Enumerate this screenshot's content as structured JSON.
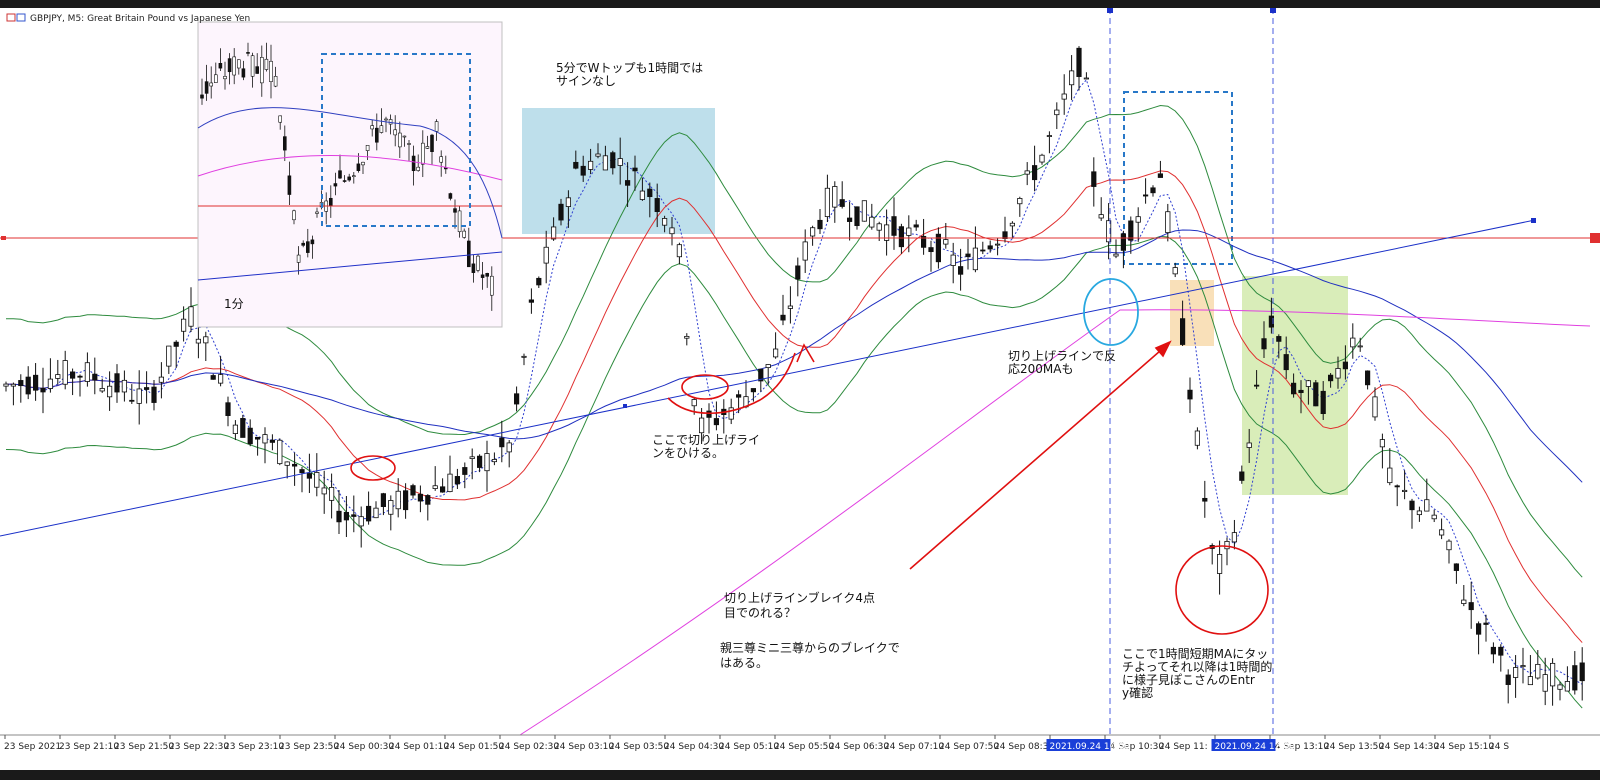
{
  "window": {
    "symbol_title": "GBPJPY, M5:  Great Britain Pound vs Japanese Yen"
  },
  "colors": {
    "bollinger": "#2e8b3e",
    "ma_short": "#e03030",
    "ma_mid": "#2030c0",
    "ma_long": "#e040e0",
    "ema_dotted": "#3040d0",
    "trendline": "#1a30c8",
    "annotation": "#e01010",
    "box_blue": "#a8d4e4",
    "box_orange": "#f8d8a8",
    "box_green": "#cfe8a8",
    "dashed_box": "#2878c8"
  },
  "chart_data": {
    "type": "candlestick",
    "price_range": [
      0,
      100
    ],
    "x_axis": {
      "labels": [
        "23 Sep 2021",
        "23 Sep 21:10",
        "23 Sep 21:50",
        "23 Sep 22:30",
        "23 Sep 23:10",
        "23 Sep 23:50",
        "24 Sep 00:30",
        "24 Sep 01:10",
        "24 Sep 01:50",
        "24 Sep 02:30",
        "24 Sep 03:10",
        "24 Sep 03:50",
        "24 Sep 04:30",
        "24 Sep 05:10",
        "24 Sep 05:50",
        "24 Sep 06:30",
        "24 Sep 07:10",
        "24 Sep 07:50",
        "24 Sep 08:30",
        "24 Sep 09:",
        "24 Sep 10:30",
        "24 Sep 11:",
        "24 Sep 12:20",
        "24 Sep 13:10",
        "24 Sep 13:50",
        "24 Sep 14:30",
        "24 Sep 15:10",
        "24 S"
      ],
      "highlighted": [
        {
          "label": "2021.09.24 10:00",
          "index": 19.5
        },
        {
          "label": "2021.09.24 12:00",
          "index": 22.5
        }
      ]
    },
    "price_path": [
      [
        0,
        48
      ],
      [
        1.4,
        50
      ],
      [
        2.6,
        46
      ],
      [
        3.4,
        58
      ],
      [
        4.2,
        43
      ],
      [
        5.2,
        38
      ],
      [
        6.2,
        30
      ],
      [
        7.2,
        32
      ],
      [
        8.4,
        36
      ],
      [
        9.2,
        40
      ],
      [
        9.6,
        60
      ],
      [
        10.4,
        78
      ],
      [
        11.0,
        80
      ],
      [
        11.8,
        74
      ],
      [
        12.2,
        70
      ],
      [
        12.6,
        42
      ],
      [
        13.4,
        46
      ],
      [
        14.0,
        52
      ],
      [
        14.6,
        68
      ],
      [
        15.0,
        74
      ],
      [
        16.0,
        70
      ],
      [
        17.0,
        67
      ],
      [
        17.4,
        64
      ],
      [
        18.2,
        70
      ],
      [
        19.0,
        82
      ],
      [
        19.6,
        94
      ],
      [
        19.8,
        76
      ],
      [
        20.2,
        66
      ],
      [
        20.6,
        72
      ],
      [
        21.0,
        78
      ],
      [
        21.4,
        56
      ],
      [
        22.0,
        22
      ],
      [
        22.3,
        26
      ],
      [
        22.6,
        40
      ],
      [
        23.0,
        58
      ],
      [
        23.4,
        48
      ],
      [
        24.0,
        46
      ],
      [
        24.6,
        56
      ],
      [
        25.2,
        34
      ],
      [
        26.0,
        30
      ],
      [
        26.6,
        18
      ],
      [
        27.4,
        8
      ]
    ],
    "overlays": [
      {
        "name": "trendline",
        "from": [
          0,
          14
        ],
        "to": [
          28.2,
          72
        ]
      },
      {
        "name": "horizontal_line",
        "value": 68
      }
    ],
    "inset": {
      "label": "1分"
    }
  },
  "annotations": {
    "note_w_top": "5分でWトップも1時間ではサインなし",
    "note_trendline_draw": "ここで切り上げラインをひける。",
    "note_reaction": "切り上げラインで反応200MAも",
    "note_break4": "切り上げラインブレイク4点目でのれる？",
    "note_sanzon": "親三尊ミニ三尊からのブレイクではある。",
    "note_touch": "ここで1時間短期MAにタッチよってそれ以降は1時間的に様子見ぽこさんのEntry確認"
  }
}
